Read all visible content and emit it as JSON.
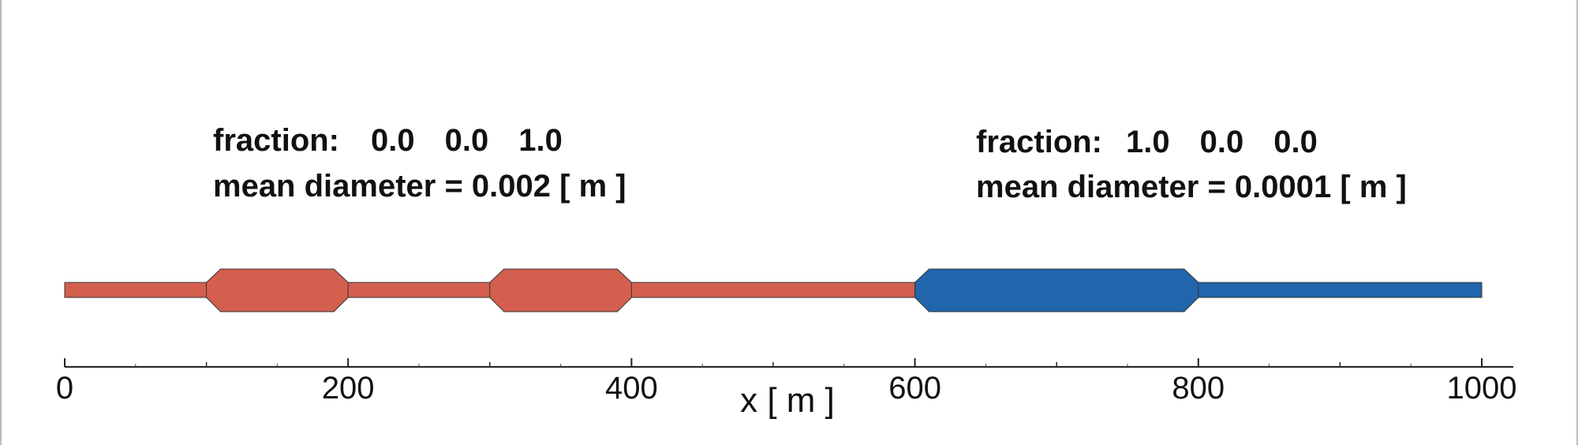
{
  "left_label": {
    "fraction_label": "fraction:",
    "fractions": [
      "0.0",
      "0.0",
      "1.0"
    ],
    "mean_diameter": "mean diameter = 0.002 [ m ]"
  },
  "right_label": {
    "fraction_label": "fraction:",
    "fractions": [
      "1.0",
      "0.0",
      "0.0"
    ],
    "mean_diameter": "mean diameter = 0.0001 [ m ]"
  },
  "axis": {
    "label": "x [ m ]",
    "min": 0,
    "max": 1000,
    "major_ticks": [
      0,
      200,
      400,
      600,
      800,
      1000
    ],
    "minor_ticks": [
      100,
      300,
      500,
      700,
      900
    ],
    "tick_labels": [
      "0",
      "200",
      "400",
      "600",
      "800",
      "1000"
    ]
  },
  "domain": {
    "segments": [
      {
        "from": 0,
        "to": 600,
        "material": "coarse",
        "color": "#d45f4e"
      },
      {
        "from": 600,
        "to": 1000,
        "material": "fine",
        "color": "#2166ad"
      }
    ],
    "bulges": [
      {
        "from": 100,
        "to": 200,
        "color": "#d45f4e"
      },
      {
        "from": 300,
        "to": 400,
        "color": "#d45f4e"
      },
      {
        "from": 600,
        "to": 800,
        "color": "#2166ad"
      }
    ]
  },
  "colors": {
    "red": "#d45f4e",
    "blue": "#2166ad",
    "text": "#111111",
    "outline": "#333333"
  }
}
